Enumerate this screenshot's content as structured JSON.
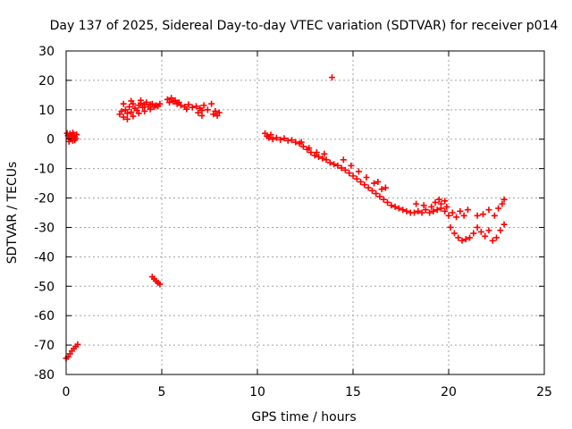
{
  "chart_data": {
    "type": "scatter",
    "title": "Day 137 of 2025, Sidereal Day-to-day VTEC variation (SDTVAR) for receiver p014",
    "xlabel": "GPS time / hours",
    "ylabel": "SDTVAR / TECUs",
    "xlim": [
      0,
      25
    ],
    "ylim": [
      -80,
      30
    ],
    "xticks": [
      0,
      5,
      10,
      15,
      20,
      25
    ],
    "yticks": [
      -80,
      -70,
      -60,
      -50,
      -40,
      -30,
      -20,
      -10,
      0,
      10,
      20,
      30
    ],
    "grid": true,
    "legend": "none",
    "marker": "plus",
    "series_color": "#ff0000",
    "series": [
      {
        "name": "SDTVAR",
        "points": [
          [
            0.0,
            -74.5
          ],
          [
            0.1,
            -74.0
          ],
          [
            0.2,
            -73.0
          ],
          [
            0.3,
            -72.0
          ],
          [
            0.4,
            -71.2
          ],
          [
            0.5,
            -70.5
          ],
          [
            0.6,
            -69.8
          ],
          [
            0.05,
            2.0
          ],
          [
            0.1,
            1.2
          ],
          [
            0.15,
            0.5
          ],
          [
            0.2,
            1.8
          ],
          [
            0.25,
            0.0
          ],
          [
            0.3,
            1.0
          ],
          [
            0.35,
            -0.5
          ],
          [
            0.4,
            1.5
          ],
          [
            0.45,
            0.8
          ],
          [
            0.5,
            0.2
          ],
          [
            0.55,
            1.6
          ],
          [
            0.15,
            -0.8
          ],
          [
            0.35,
            2.2
          ],
          [
            0.45,
            -0.3
          ],
          [
            2.8,
            8.5
          ],
          [
            2.9,
            9.5
          ],
          [
            3.0,
            7.5
          ],
          [
            3.1,
            10.0
          ],
          [
            3.2,
            8.8
          ],
          [
            3.3,
            11.0
          ],
          [
            3.4,
            9.2
          ],
          [
            3.5,
            12.0
          ],
          [
            3.6,
            10.5
          ],
          [
            3.7,
            9.8
          ],
          [
            3.8,
            11.5
          ],
          [
            3.9,
            12.2
          ],
          [
            4.0,
            10.8
          ],
          [
            4.1,
            11.8
          ],
          [
            4.2,
            12.5
          ],
          [
            4.3,
            11.0
          ],
          [
            4.4,
            11.8
          ],
          [
            4.5,
            12.0
          ],
          [
            4.6,
            10.9
          ],
          [
            4.7,
            11.5
          ],
          [
            4.8,
            11.2
          ],
          [
            4.9,
            12.0
          ],
          [
            3.0,
            12.0
          ],
          [
            3.2,
            6.8
          ],
          [
            3.5,
            7.8
          ],
          [
            3.8,
            8.8
          ],
          [
            4.1,
            9.5
          ],
          [
            4.4,
            10.2
          ],
          [
            3.4,
            13.0
          ],
          [
            3.9,
            13.2
          ],
          [
            5.3,
            13.5
          ],
          [
            5.4,
            12.5
          ],
          [
            5.5,
            14.0
          ],
          [
            5.6,
            12.8
          ],
          [
            5.7,
            13.2
          ],
          [
            5.8,
            12.0
          ],
          [
            5.9,
            12.5
          ],
          [
            6.0,
            11.5
          ],
          [
            6.2,
            11.0
          ],
          [
            6.4,
            11.8
          ],
          [
            6.6,
            10.8
          ],
          [
            6.8,
            11.2
          ],
          [
            7.0,
            10.5
          ],
          [
            7.1,
            9.8
          ],
          [
            7.2,
            11.5
          ],
          [
            7.4,
            10.0
          ],
          [
            7.6,
            12.0
          ],
          [
            7.7,
            8.5
          ],
          [
            7.8,
            9.5
          ],
          [
            7.9,
            8.0
          ],
          [
            8.0,
            9.0
          ],
          [
            6.9,
            9.0
          ],
          [
            7.1,
            8.0
          ],
          [
            6.3,
            10.2
          ],
          [
            4.5,
            -46.8
          ],
          [
            4.6,
            -47.5
          ],
          [
            4.7,
            -48.2
          ],
          [
            4.8,
            -48.8
          ],
          [
            4.9,
            -49.3
          ],
          [
            13.9,
            21.0
          ],
          [
            10.4,
            2.0
          ],
          [
            10.5,
            1.0
          ],
          [
            10.6,
            0.5
          ],
          [
            10.7,
            1.5
          ],
          [
            10.8,
            0.0
          ],
          [
            11.0,
            0.5
          ],
          [
            11.2,
            -0.2
          ],
          [
            11.4,
            0.3
          ],
          [
            11.6,
            -0.5
          ],
          [
            11.8,
            -0.3
          ],
          [
            12.0,
            -1.0
          ],
          [
            12.2,
            -1.5
          ],
          [
            12.4,
            -2.5
          ],
          [
            12.6,
            -3.5
          ],
          [
            12.8,
            -4.5
          ],
          [
            13.0,
            -5.5
          ],
          [
            13.2,
            -6.0
          ],
          [
            13.4,
            -6.5
          ],
          [
            13.6,
            -7.0
          ],
          [
            13.8,
            -8.0
          ],
          [
            12.3,
            -1.0
          ],
          [
            12.7,
            -3.0
          ],
          [
            13.1,
            -4.5
          ],
          [
            13.5,
            -5.0
          ],
          [
            14.0,
            -8.5
          ],
          [
            14.2,
            -9.0
          ],
          [
            14.4,
            -9.8
          ],
          [
            14.6,
            -10.5
          ],
          [
            14.8,
            -11.5
          ],
          [
            15.0,
            -12.5
          ],
          [
            15.2,
            -13.5
          ],
          [
            15.4,
            -14.5
          ],
          [
            15.6,
            -15.5
          ],
          [
            15.8,
            -16.5
          ],
          [
            16.0,
            -17.5
          ],
          [
            16.2,
            -18.5
          ],
          [
            16.4,
            -19.5
          ],
          [
            16.6,
            -20.5
          ],
          [
            16.8,
            -21.5
          ],
          [
            17.0,
            -22.5
          ],
          [
            14.5,
            -7.0
          ],
          [
            14.9,
            -9.0
          ],
          [
            15.3,
            -11.0
          ],
          [
            15.7,
            -13.0
          ],
          [
            16.1,
            -15.0
          ],
          [
            16.5,
            -17.0
          ],
          [
            16.3,
            -14.5
          ],
          [
            16.7,
            -16.5
          ],
          [
            17.2,
            -23.0
          ],
          [
            17.4,
            -23.5
          ],
          [
            17.6,
            -24.0
          ],
          [
            17.8,
            -24.5
          ],
          [
            18.0,
            -25.0
          ],
          [
            18.2,
            -25.0
          ],
          [
            18.4,
            -24.5
          ],
          [
            18.6,
            -25.0
          ],
          [
            18.8,
            -24.0
          ],
          [
            19.0,
            -25.0
          ],
          [
            19.2,
            -24.5
          ],
          [
            19.4,
            -24.0
          ],
          [
            19.6,
            -23.5
          ],
          [
            19.8,
            -24.5
          ],
          [
            18.3,
            -22.0
          ],
          [
            18.7,
            -22.5
          ],
          [
            19.1,
            -23.0
          ],
          [
            19.3,
            -21.5
          ],
          [
            19.6,
            -22.0
          ],
          [
            19.9,
            -23.0
          ],
          [
            19.5,
            -20.5
          ],
          [
            19.8,
            -21.0
          ],
          [
            20.0,
            -26.0
          ],
          [
            20.2,
            -25.0
          ],
          [
            20.4,
            -26.5
          ],
          [
            20.6,
            -24.5
          ],
          [
            20.8,
            -26.0
          ],
          [
            21.0,
            -24.0
          ],
          [
            20.1,
            -30.0
          ],
          [
            20.3,
            -32.0
          ],
          [
            20.5,
            -33.5
          ],
          [
            20.7,
            -34.5
          ],
          [
            20.9,
            -34.0
          ],
          [
            21.1,
            -33.5
          ],
          [
            21.3,
            -32.0
          ],
          [
            21.5,
            -30.0
          ],
          [
            21.7,
            -31.5
          ],
          [
            21.9,
            -33.0
          ],
          [
            22.1,
            -31.0
          ],
          [
            21.5,
            -26.0
          ],
          [
            21.8,
            -25.5
          ],
          [
            22.1,
            -24.0
          ],
          [
            22.4,
            -26.0
          ],
          [
            22.6,
            -23.5
          ],
          [
            22.8,
            -22.0
          ],
          [
            22.9,
            -20.5
          ],
          [
            22.3,
            -34.5
          ],
          [
            22.5,
            -33.5
          ],
          [
            22.7,
            -31.0
          ],
          [
            22.9,
            -29.0
          ]
        ]
      }
    ]
  }
}
